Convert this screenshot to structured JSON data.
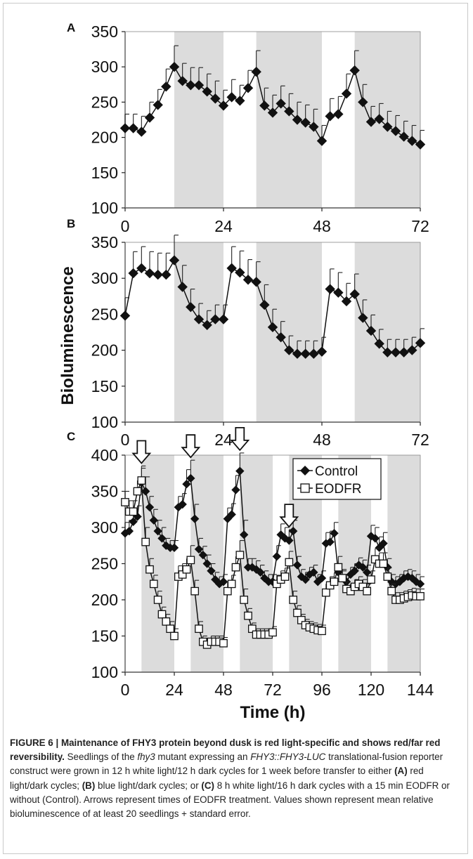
{
  "chart_data": [
    {
      "type": "line",
      "panel_label": "A",
      "xlabel": "",
      "ylabel": "",
      "xlim": [
        0,
        72
      ],
      "ylim": [
        100,
        350
      ],
      "x_ticks": [
        0,
        24,
        48,
        72
      ],
      "y_ticks": [
        100,
        150,
        200,
        250,
        300,
        350
      ],
      "dark_intervals": [
        [
          12,
          24
        ],
        [
          32,
          48
        ],
        [
          56,
          72
        ]
      ],
      "series": [
        {
          "marker": "diamond-filled",
          "x": [
            0,
            2,
            4,
            6,
            8,
            10,
            12,
            14,
            16,
            18,
            20,
            22,
            24,
            26,
            28,
            30,
            32,
            34,
            36,
            38,
            40,
            42,
            44,
            46,
            48,
            50,
            52,
            54,
            56,
            58,
            60,
            62,
            64,
            66,
            68,
            70,
            72
          ],
          "y": [
            213,
            213,
            208,
            228,
            246,
            272,
            300,
            280,
            274,
            274,
            265,
            255,
            245,
            257,
            252,
            270,
            293,
            245,
            235,
            248,
            237,
            225,
            221,
            215,
            195,
            230,
            233,
            262,
            295,
            250,
            222,
            226,
            215,
            209,
            201,
            195,
            190
          ],
          "error_plus": [
            20,
            20,
            22,
            22,
            22,
            25,
            30,
            25,
            25,
            25,
            25,
            25,
            22,
            25,
            22,
            25,
            30,
            25,
            25,
            25,
            25,
            25,
            25,
            25,
            22,
            25,
            25,
            28,
            28,
            25,
            22,
            22,
            22,
            22,
            22,
            22,
            20
          ]
        }
      ]
    },
    {
      "type": "line",
      "panel_label": "B",
      "xlabel": "",
      "ylabel": "Bioluminescence",
      "xlim": [
        0,
        72
      ],
      "ylim": [
        100,
        350
      ],
      "x_ticks": [
        0,
        24,
        48,
        72
      ],
      "y_ticks": [
        100,
        150,
        200,
        250,
        300,
        350
      ],
      "dark_intervals": [
        [
          12,
          24
        ],
        [
          32,
          48
        ],
        [
          56,
          72
        ]
      ],
      "series": [
        {
          "marker": "diamond-filled",
          "x": [
            0,
            2,
            4,
            6,
            8,
            10,
            12,
            14,
            16,
            18,
            20,
            22,
            24,
            26,
            28,
            30,
            32,
            34,
            36,
            38,
            40,
            42,
            44,
            46,
            48,
            50,
            52,
            54,
            56,
            58,
            60,
            62,
            64,
            66,
            68,
            70,
            72
          ],
          "y": [
            248,
            307,
            314,
            307,
            305,
            305,
            325,
            288,
            260,
            243,
            235,
            243,
            243,
            314,
            308,
            298,
            295,
            263,
            232,
            218,
            200,
            195,
            195,
            195,
            198,
            285,
            280,
            268,
            278,
            245,
            227,
            209,
            197,
            197,
            197,
            200,
            210
          ],
          "error_plus": [
            25,
            30,
            30,
            30,
            30,
            30,
            35,
            30,
            25,
            22,
            20,
            20,
            20,
            30,
            30,
            28,
            28,
            28,
            25,
            22,
            20,
            18,
            18,
            18,
            20,
            28,
            28,
            25,
            28,
            25,
            22,
            20,
            18,
            18,
            18,
            18,
            20
          ]
        }
      ]
    },
    {
      "type": "line",
      "panel_label": "C",
      "xlabel": "Time (h)",
      "ylabel": "",
      "xlim": [
        0,
        144
      ],
      "ylim": [
        100,
        400
      ],
      "x_ticks": [
        0,
        24,
        48,
        72,
        96,
        120,
        144
      ],
      "y_ticks": [
        100,
        150,
        200,
        250,
        300,
        350,
        400
      ],
      "dark_intervals": [
        [
          8,
          24
        ],
        [
          32,
          48
        ],
        [
          56,
          72
        ],
        [
          80,
          96
        ],
        [
          104,
          120
        ],
        [
          128,
          144
        ]
      ],
      "arrows_x": [
        8,
        32,
        56,
        80
      ],
      "legend": "top-right",
      "series": [
        {
          "name": "Control",
          "marker": "diamond-filled",
          "x": [
            0,
            2,
            4,
            6,
            8,
            10,
            12,
            14,
            16,
            18,
            20,
            22,
            24,
            26,
            28,
            30,
            32,
            34,
            36,
            38,
            40,
            42,
            44,
            46,
            48,
            50,
            52,
            54,
            56,
            58,
            60,
            62,
            64,
            66,
            68,
            70,
            72,
            74,
            76,
            78,
            80,
            82,
            84,
            86,
            88,
            90,
            92,
            94,
            96,
            98,
            100,
            102,
            104,
            106,
            108,
            110,
            112,
            114,
            116,
            118,
            120,
            122,
            124,
            126,
            128,
            130,
            132,
            134,
            136,
            138,
            140,
            142,
            144
          ],
          "y": [
            292,
            295,
            308,
            315,
            362,
            350,
            328,
            310,
            295,
            285,
            275,
            272,
            272,
            328,
            332,
            360,
            368,
            312,
            270,
            262,
            250,
            240,
            228,
            222,
            225,
            312,
            318,
            352,
            378,
            290,
            245,
            245,
            242,
            238,
            230,
            225,
            225,
            260,
            290,
            285,
            282,
            295,
            248,
            232,
            228,
            235,
            238,
            225,
            230,
            278,
            280,
            292,
            238,
            230,
            225,
            235,
            240,
            248,
            245,
            238,
            288,
            285,
            272,
            278,
            245,
            225,
            222,
            225,
            230,
            232,
            230,
            225,
            222
          ],
          "error_plus": [
            15,
            15,
            15,
            15,
            20,
            20,
            15,
            15,
            15,
            15,
            10,
            10,
            10,
            15,
            15,
            20,
            25,
            20,
            15,
            12,
            12,
            10,
            10,
            10,
            10,
            15,
            15,
            20,
            25,
            20,
            12,
            12,
            12,
            10,
            10,
            10,
            10,
            15,
            15,
            15,
            15,
            15,
            12,
            10,
            10,
            10,
            10,
            10,
            10,
            15,
            15,
            15,
            12,
            10,
            10,
            10,
            10,
            10,
            10,
            10,
            15,
            15,
            15,
            15,
            12,
            10,
            10,
            10,
            10,
            10,
            10,
            10,
            10
          ]
        },
        {
          "name": "EODFR",
          "marker": "square-open",
          "x": [
            0,
            2,
            4,
            6,
            8,
            10,
            12,
            14,
            16,
            18,
            20,
            22,
            24,
            26,
            28,
            30,
            32,
            34,
            36,
            38,
            40,
            42,
            44,
            46,
            48,
            50,
            52,
            54,
            56,
            58,
            60,
            62,
            64,
            66,
            68,
            70,
            72,
            74,
            76,
            78,
            80,
            82,
            84,
            86,
            88,
            90,
            92,
            94,
            96,
            98,
            100,
            102,
            104,
            106,
            108,
            110,
            112,
            114,
            116,
            118,
            120,
            122,
            124,
            126,
            128,
            130,
            132,
            134,
            136,
            138,
            140,
            142,
            144
          ],
          "y": [
            335,
            322,
            322,
            350,
            365,
            280,
            242,
            222,
            200,
            180,
            170,
            160,
            150,
            232,
            235,
            242,
            255,
            212,
            160,
            142,
            138,
            142,
            142,
            142,
            140,
            212,
            222,
            245,
            262,
            200,
            178,
            160,
            152,
            152,
            152,
            152,
            155,
            222,
            228,
            232,
            252,
            200,
            182,
            172,
            165,
            162,
            160,
            158,
            157,
            210,
            220,
            225,
            245,
            230,
            215,
            212,
            218,
            222,
            218,
            212,
            228,
            256,
            250,
            250,
            232,
            212,
            200,
            200,
            202,
            204,
            206,
            205,
            205
          ],
          "error_plus": [
            15,
            15,
            15,
            15,
            20,
            20,
            15,
            12,
            12,
            10,
            10,
            10,
            10,
            15,
            15,
            15,
            20,
            15,
            10,
            8,
            8,
            8,
            8,
            8,
            8,
            12,
            12,
            15,
            20,
            15,
            10,
            8,
            8,
            8,
            8,
            8,
            8,
            12,
            12,
            12,
            15,
            12,
            10,
            8,
            8,
            8,
            8,
            8,
            8,
            12,
            12,
            12,
            15,
            12,
            10,
            10,
            10,
            10,
            10,
            10,
            12,
            15,
            15,
            15,
            12,
            10,
            10,
            10,
            10,
            10,
            10,
            10,
            10
          ]
        }
      ]
    }
  ],
  "caption": {
    "title": "FIGURE 6 | Maintenance of FHY3 protein beyond dusk is red light-specific and shows red/far red reversibility.",
    "t1": " Seedlings of the ",
    "i1": "fhy3",
    "t2": " mutant expressing an ",
    "i2": "FHY3::FHY3-LUC",
    "t3": " translational-fusion reporter construct were grown in 12 h white light/12 h dark cycles for 1 week before transfer to either ",
    "b1": "(A)",
    "t4": " red light/dark cycles; ",
    "b2": "(B)",
    "t5": " blue light/dark cycles; or ",
    "b3": "(C)",
    "t6": " 8 h white light/16 h dark cycles with a 15 min EODFR or without (Control). Arrows represent times of EODFR treatment. Values shown represent mean relative bioluminescence of at least 20 seedlings + standard error."
  }
}
